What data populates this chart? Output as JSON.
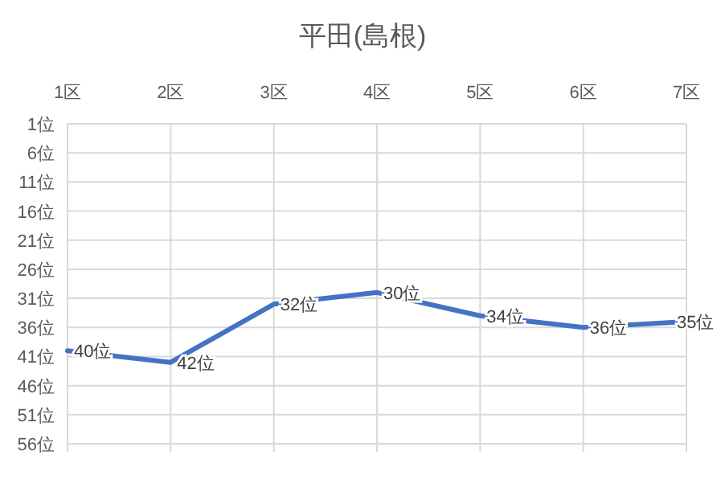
{
  "chart_data": {
    "type": "line",
    "title": "平田(島根)",
    "categories": [
      "1区",
      "2区",
      "3区",
      "4区",
      "5区",
      "6区",
      "7区"
    ],
    "series": [
      {
        "color": "#4472c4",
        "values": [
          40,
          42,
          32,
          30,
          34,
          36,
          35
        ],
        "value_labels": [
          "40位",
          "42位",
          "32位",
          "30位",
          "34位",
          "36位",
          "35位"
        ]
      }
    ],
    "ylim": [
      56,
      1
    ],
    "yticks": [
      {
        "value": 1,
        "label": "1位"
      },
      {
        "value": 6,
        "label": "6位"
      },
      {
        "value": 11,
        "label": "11位"
      },
      {
        "value": 16,
        "label": "16位"
      },
      {
        "value": 21,
        "label": "21位"
      },
      {
        "value": 26,
        "label": "26位"
      },
      {
        "value": 31,
        "label": "31位"
      },
      {
        "value": 36,
        "label": "36位"
      },
      {
        "value": 41,
        "label": "41位"
      },
      {
        "value": 46,
        "label": "46位"
      },
      {
        "value": 51,
        "label": "51位"
      },
      {
        "value": 56,
        "label": "56位"
      }
    ],
    "grid": true,
    "marker": "none",
    "line_style": "solid"
  }
}
